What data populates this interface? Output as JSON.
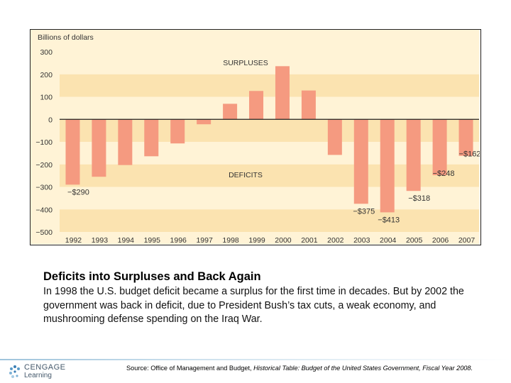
{
  "chart_data": {
    "type": "bar",
    "ylabel": "Billions of dollars",
    "ylim": [
      -500,
      300
    ],
    "yticks": [
      300,
      200,
      100,
      0,
      -100,
      -200,
      -300,
      -400,
      -500
    ],
    "ytick_labels": [
      "300",
      "200",
      "100",
      "0",
      "−100",
      "−200",
      "−300",
      "−400",
      "−500"
    ],
    "categories": [
      "1992",
      "1993",
      "1994",
      "1995",
      "1996",
      "1997",
      "1998",
      "1999",
      "2000",
      "2001",
      "2002",
      "2003",
      "2004",
      "2005",
      "2006",
      "2007"
    ],
    "values": [
      -290,
      -255,
      -203,
      -164,
      -107,
      -22,
      69,
      126,
      236,
      128,
      -158,
      -375,
      -413,
      -318,
      -248,
      -162
    ],
    "data_labels": [
      {
        "category": "1992",
        "text": "−$290"
      },
      {
        "category": "2003",
        "text": "−$375"
      },
      {
        "category": "2004",
        "text": "−$413"
      },
      {
        "category": "2005",
        "text": "−$318"
      },
      {
        "category": "2006",
        "text": "−$248"
      },
      {
        "category": "2007",
        "text": "−$162"
      }
    ],
    "annotations": [
      "SURPLUSES",
      "DEFICITS"
    ],
    "grid": true
  },
  "colors": {
    "bar": "#f59a80",
    "band_light": "#fff3d6",
    "band_dark": "#fbe3b0",
    "axis": "#222222",
    "text": "#333333"
  },
  "caption": {
    "title": "Deficits into Surpluses and Back Again",
    "body": "In 1998 the U.S. budget deficit became a surplus for the first time in decades. But by 2002 the government was back in deficit, due to President Bush’s tax cuts, a weak economy, and mushrooming defense spending on the Iraq War."
  },
  "footer": {
    "logo_line1": "CENGAGE",
    "logo_line2": "Learning",
    "logo_icon": "cengage-dots-icon",
    "source_prefix": "Source: Office of Management and Budget, ",
    "source_italic": "Historical Table: Budget of the United States Government, Fiscal Year 2008."
  }
}
